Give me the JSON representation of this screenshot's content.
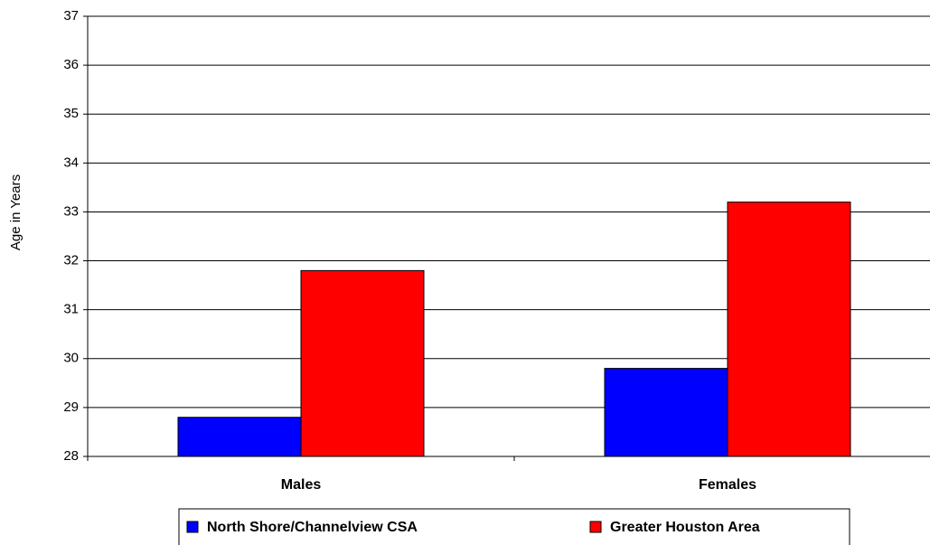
{
  "chart_data": {
    "type": "bar",
    "y_label": "Age in Years",
    "categories": [
      "Males",
      "Females"
    ],
    "series": [
      {
        "name": "North Shore/Channelview CSA",
        "color": "#0000ff",
        "values": [
          28.8,
          29.8
        ]
      },
      {
        "name": "Greater Houston Area",
        "color": "#ff0000",
        "values": [
          31.8,
          33.2
        ]
      }
    ],
    "ylim": [
      28,
      37
    ],
    "yticks": [
      28,
      29,
      30,
      31,
      32,
      33,
      34,
      35,
      36,
      37
    ],
    "grid": true
  }
}
